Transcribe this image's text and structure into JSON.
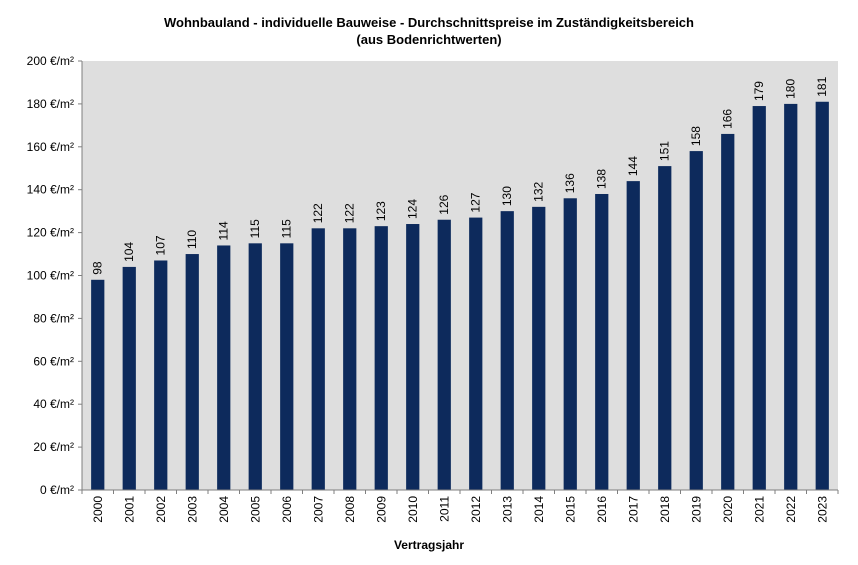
{
  "chart_data": {
    "type": "bar",
    "title": "Wohnbauland - individuelle Bauweise - Durchschnittspreise im Zuständigkeitsbereich",
    "subtitle": "(aus Bodenrichtwerten)",
    "xlabel": "Vertragsjahr",
    "ylabel": "",
    "y_unit_suffix": " €/m²",
    "ylim": [
      0,
      200
    ],
    "yticks": [
      0,
      20,
      40,
      60,
      80,
      100,
      120,
      140,
      160,
      180,
      200
    ],
    "categories": [
      "2000",
      "2001",
      "2002",
      "2003",
      "2004",
      "2005",
      "2006",
      "2007",
      "2008",
      "2009",
      "2010",
      "2011",
      "2012",
      "2013",
      "2014",
      "2015",
      "2016",
      "2017",
      "2018",
      "2019",
      "2020",
      "2021",
      "2022",
      "2023"
    ],
    "values": [
      98,
      104,
      107,
      110,
      114,
      115,
      115,
      122,
      122,
      123,
      124,
      126,
      127,
      130,
      132,
      136,
      138,
      144,
      151,
      158,
      166,
      179,
      180,
      181
    ],
    "grid": false,
    "legend": "none",
    "colors": {
      "bar": "#0d2a5c",
      "plot_background": "#dedede",
      "axis": "#7f7f7f"
    }
  }
}
